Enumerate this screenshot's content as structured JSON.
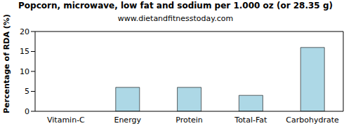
{
  "chart_data": {
    "type": "bar",
    "title": "Popcorn, microwave, low fat and sodium per 1.000 oz (or 28.35 g)",
    "subtitle": "www.dietandfitnesstoday.com",
    "y_label": "Percentage of RDA (%)",
    "categories": [
      "Vitamin-C",
      "Energy",
      "Protein",
      "Total-Fat",
      "Carbohydrate"
    ],
    "values": [
      0,
      6,
      6,
      4,
      16
    ],
    "color": "#add8e6",
    "ylim": [
      0,
      20
    ],
    "yticks": [
      0,
      5,
      10,
      15,
      20
    ],
    "grid": false
  }
}
